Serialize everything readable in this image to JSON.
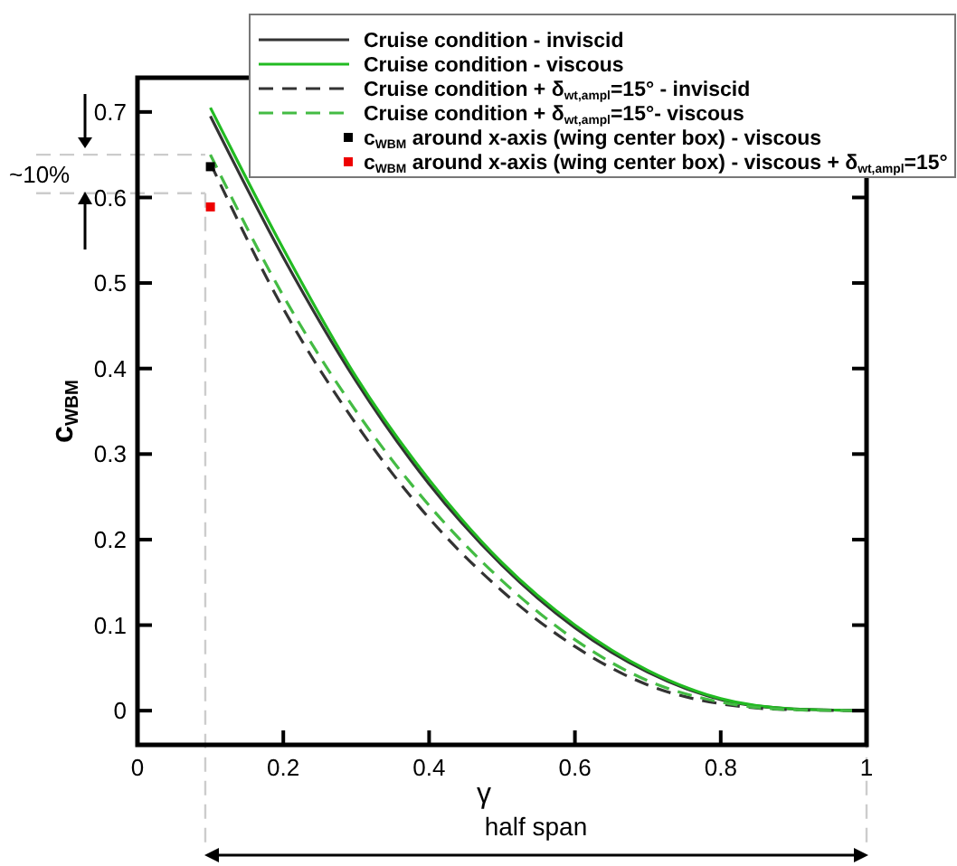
{
  "chart_data": {
    "type": "line",
    "xlabel": "γ",
    "ylabel": "c$_{WBM}$",
    "x": [
      0.1,
      0.2,
      0.3,
      0.4,
      0.5,
      0.6,
      0.7,
      0.8,
      0.9,
      1.0
    ],
    "series": [
      {
        "name": "Cruise condition - inviscid",
        "color": "#333333",
        "line_style": "solid",
        "values": [
          0.695,
          0.53,
          0.385,
          0.265,
          0.17,
          0.097,
          0.045,
          0.013,
          0.002,
          0
        ]
      },
      {
        "name": "Cruise condition - viscous",
        "color": "#22bb22",
        "line_style": "solid",
        "values": [
          0.705,
          0.54,
          0.39,
          0.27,
          0.173,
          0.1,
          0.047,
          0.014,
          0.002,
          0
        ]
      },
      {
        "name": "Cruise condition + δ$_{wt,ampl}$=15° - inviscid",
        "color": "#333333",
        "line_style": "dashed",
        "values": [
          0.64,
          0.47,
          0.335,
          0.225,
          0.14,
          0.075,
          0.03,
          0.008,
          0.001,
          0
        ]
      },
      {
        "name": "Cruise condition + δ$_{wt,ampl}$=15°- viscous",
        "color": "#44bb44",
        "line_style": "dashed",
        "values": [
          0.65,
          0.485,
          0.35,
          0.24,
          0.152,
          0.083,
          0.035,
          0.01,
          0.001,
          0
        ]
      },
      {
        "name": "c$_{WBM}$ around x-axis (wing center box) - viscous",
        "type": "scatter",
        "marker": "square",
        "color": "#000000",
        "x": [
          0.1
        ],
        "values": [
          0.636
        ]
      },
      {
        "name": "c$_{WBM}$ around x-axis (wing center box) - viscous + δ$_{wt,ampl}$=15°",
        "type": "scatter",
        "marker": "square",
        "color": "#ee0000",
        "x": [
          0.1
        ],
        "values": [
          0.589
        ]
      }
    ],
    "xlim": [
      0,
      1
    ],
    "xticks": [
      0,
      0.2,
      0.4,
      0.6,
      0.8,
      1
    ],
    "ylim": [
      -0.04,
      0.74
    ],
    "yticks": [
      0,
      0.1,
      0.2,
      0.3,
      0.4,
      0.5,
      0.6,
      0.7
    ],
    "ref_lines": [
      {
        "axis": "x",
        "value": 0.093,
        "color": "#cccccc",
        "line_style": "dashed"
      },
      {
        "axis": "x",
        "value": 1.0,
        "color": "#cccccc",
        "line_style": "dashed"
      },
      {
        "axis": "y",
        "value": 0.65,
        "color": "#cccccc",
        "line_style": "dashed"
      },
      {
        "axis": "y",
        "value": 0.605,
        "color": "#cccccc",
        "line_style": "dashed"
      }
    ],
    "annotations": [
      "~10%",
      "half span"
    ],
    "legend": "top right",
    "grid": false
  }
}
